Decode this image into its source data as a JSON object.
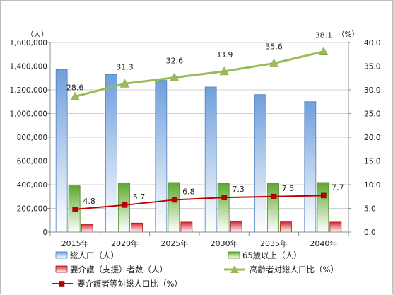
{
  "chart_data": {
    "type": "bar",
    "categories": [
      "2015年",
      "2020年",
      "2025年",
      "2030年",
      "2035年",
      "2040年"
    ],
    "left_axis": {
      "unit": "（人）",
      "range": [
        0,
        1600000
      ],
      "ticks": [
        "0",
        "200,000",
        "400,000",
        "600,000",
        "800,000",
        "1,000,000",
        "1,200,000",
        "1,400,000",
        "1,600,000"
      ]
    },
    "right_axis": {
      "unit": "（%）",
      "range": [
        0,
        40
      ],
      "ticks": [
        "0.0",
        "5.0",
        "10.0",
        "15.0",
        "20.0",
        "25.0",
        "30.0",
        "35.0",
        "40.0"
      ]
    },
    "grid": true,
    "legend_position": "bottom",
    "series": [
      {
        "name": "総人口（人）",
        "type": "bar",
        "axis": "left",
        "color": "#8eb4e3",
        "values": [
          1372000,
          1330000,
          1280000,
          1224000,
          1160000,
          1100000
        ]
      },
      {
        "name": "65歳以上（人）",
        "type": "bar",
        "axis": "left",
        "color": "#77b544",
        "values": [
          390000,
          416000,
          418000,
          412000,
          412000,
          418000
        ]
      },
      {
        "name": "要介護（支援）者数（人）",
        "type": "bar",
        "axis": "left",
        "color": "#d9262e",
        "values": [
          66000,
          76000,
          84000,
          90000,
          86000,
          84000
        ]
      },
      {
        "name": "高齢者対総人口比（%）",
        "type": "line",
        "axis": "right",
        "color": "#9bbb59",
        "marker": "triangle",
        "values": [
          28.6,
          31.3,
          32.6,
          33.9,
          35.6,
          38.1
        ],
        "labels": [
          "28.6",
          "31.3",
          "32.6",
          "33.9",
          "35.6",
          "38.1"
        ]
      },
      {
        "name": "要介護者等対総人口比（%）",
        "type": "line",
        "axis": "right",
        "color": "#c00000",
        "marker": "square",
        "values": [
          4.8,
          5.7,
          6.8,
          7.3,
          7.5,
          7.7
        ],
        "labels": [
          "4.8",
          "5.7",
          "6.8",
          "7.3",
          "7.5",
          "7.7"
        ]
      }
    ]
  }
}
